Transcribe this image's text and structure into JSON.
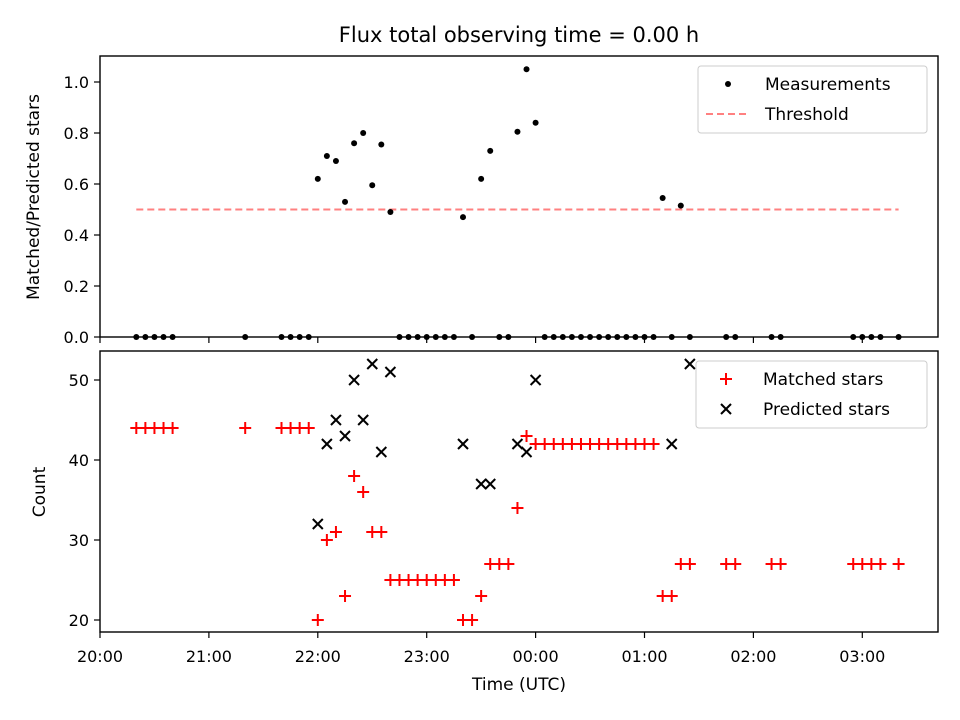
{
  "chart_data": [
    {
      "type": "scatter",
      "title": "Flux total observing time = 0.00 h",
      "xlabel": "",
      "ylabel": "Matched/Predicted stars",
      "ylim": [
        0.0,
        1.1
      ],
      "yticks": [
        "0.0",
        "0.2",
        "0.4",
        "0.6",
        "0.8",
        "1.0"
      ],
      "legend_position": "upper right",
      "series": [
        {
          "name": "Measurements",
          "marker": "dot",
          "color": "#000000",
          "x": [
            "20:20",
            "20:25",
            "20:30",
            "20:35",
            "20:40",
            "21:20",
            "21:40",
            "21:45",
            "21:50",
            "21:55",
            "22:00",
            "22:05",
            "22:10",
            "22:15",
            "22:20",
            "22:25",
            "22:30",
            "22:35",
            "22:40",
            "22:45",
            "22:50",
            "22:55",
            "23:00",
            "23:05",
            "23:10",
            "23:15",
            "23:20",
            "23:25",
            "23:30",
            "23:35",
            "23:40",
            "23:45",
            "23:50",
            "23:55",
            "00:00",
            "00:05",
            "00:10",
            "00:15",
            "00:20",
            "00:25",
            "00:30",
            "00:35",
            "00:40",
            "00:45",
            "00:50",
            "00:55",
            "01:00",
            "01:05",
            "01:10",
            "01:15",
            "01:20",
            "01:25",
            "01:45",
            "01:50",
            "02:10",
            "02:15",
            "02:55",
            "03:00",
            "03:05",
            "03:10",
            "03:20"
          ],
          "y": [
            0,
            0,
            0,
            0,
            0,
            0,
            0,
            0,
            0,
            0,
            0.62,
            0.71,
            0.69,
            0.53,
            0.76,
            0.8,
            0.595,
            0.755,
            0.49,
            0,
            0,
            0,
            0,
            0,
            0,
            0,
            0.47,
            0,
            0.62,
            0.73,
            0,
            0,
            0.805,
            1.05,
            0.84,
            0,
            0,
            0,
            0,
            0,
            0,
            0,
            0,
            0,
            0,
            0,
            0,
            0,
            0.545,
            0,
            0.515,
            0,
            0,
            0,
            0,
            0,
            0,
            0,
            0,
            0,
            0
          ]
        },
        {
          "name": "Threshold",
          "marker": "dashed-line",
          "color": "#ff8080",
          "x": [
            "20:20",
            "03:20"
          ],
          "y": [
            0.5,
            0.5
          ]
        }
      ]
    },
    {
      "type": "scatter",
      "title": "",
      "xlabel": "Time (UTC)",
      "ylabel": "Count",
      "ylim": [
        18.2,
        53.8
      ],
      "yticks": [
        "20",
        "30",
        "40",
        "50"
      ],
      "xticks": [
        "20:00",
        "21:00",
        "22:00",
        "23:00",
        "00:00",
        "01:00",
        "02:00",
        "03:00"
      ],
      "legend_position": "upper right",
      "series": [
        {
          "name": "Matched stars",
          "marker": "plus",
          "color": "#ff0000",
          "x": [
            "20:20",
            "20:25",
            "20:30",
            "20:35",
            "20:40",
            "21:20",
            "21:40",
            "21:45",
            "21:50",
            "21:55",
            "22:00",
            "22:05",
            "22:10",
            "22:15",
            "22:20",
            "22:25",
            "22:30",
            "22:35",
            "22:40",
            "22:45",
            "22:50",
            "22:55",
            "23:00",
            "23:05",
            "23:10",
            "23:15",
            "23:20",
            "23:25",
            "23:30",
            "23:35",
            "23:40",
            "23:45",
            "23:50",
            "23:55",
            "00:00",
            "00:05",
            "00:10",
            "00:15",
            "00:20",
            "00:25",
            "00:30",
            "00:35",
            "00:40",
            "00:45",
            "00:50",
            "00:55",
            "01:00",
            "01:05",
            "01:10",
            "01:15",
            "01:20",
            "01:25",
            "01:45",
            "01:50",
            "02:10",
            "02:15",
            "02:55",
            "03:00",
            "03:05",
            "03:10",
            "03:20"
          ],
          "y": [
            44,
            44,
            44,
            44,
            44,
            44,
            44,
            44,
            44,
            44,
            20,
            30,
            31,
            23,
            38,
            36,
            31,
            31,
            25,
            25,
            25,
            25,
            25,
            25,
            25,
            25,
            20,
            20,
            23,
            27,
            27,
            27,
            34,
            43,
            42,
            42,
            42,
            42,
            42,
            42,
            42,
            42,
            42,
            42,
            42,
            42,
            42,
            42,
            23,
            23,
            27,
            27,
            27,
            27,
            27,
            27,
            27,
            27,
            27,
            27,
            27
          ]
        },
        {
          "name": "Predicted stars",
          "marker": "x",
          "color": "#000000",
          "x": [
            "22:00",
            "22:05",
            "22:10",
            "22:15",
            "22:20",
            "22:25",
            "22:30",
            "22:35",
            "22:40",
            "23:20",
            "23:30",
            "23:35",
            "23:50",
            "23:55",
            "00:00",
            "01:15",
            "01:25"
          ],
          "y": [
            32,
            42,
            45,
            43,
            50,
            45,
            52,
            41,
            51,
            42,
            37,
            37,
            42,
            41,
            50,
            42,
            52
          ]
        }
      ]
    }
  ]
}
